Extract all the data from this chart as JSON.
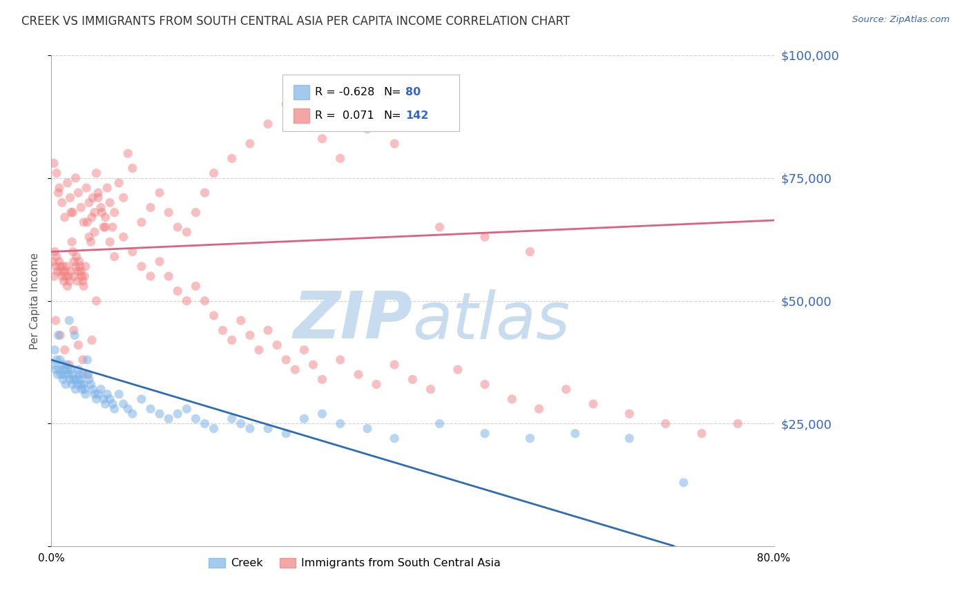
{
  "title": "CREEK VS IMMIGRANTS FROM SOUTH CENTRAL ASIA PER CAPITA INCOME CORRELATION CHART",
  "source": "Source: ZipAtlas.com",
  "ylabel": "Per Capita Income",
  "xlim": [
    0.0,
    0.8
  ],
  "ylim": [
    0,
    100000
  ],
  "yticks": [
    0,
    25000,
    50000,
    75000,
    100000
  ],
  "ytick_labels": [
    "",
    "$25,000",
    "$50,000",
    "$75,000",
    "$100,000"
  ],
  "creek_R": -0.628,
  "creek_N": 80,
  "immigrant_R": 0.071,
  "immigrant_N": 142,
  "creek_color": "#7EB3E8",
  "immigrant_color": "#F08080",
  "creek_line_color": "#2E6BB5",
  "immigrant_line_color": "#E06080",
  "title_color": "#333333",
  "axis_label_color": "#555555",
  "right_tick_color": "#3366CC",
  "watermark_color": "#C8DCF0",
  "background_color": "#FFFFFF",
  "grid_color": "#CCCCCC",
  "creek_line_intercept": 38000,
  "creek_line_slope": -55000,
  "immigrant_line_intercept": 60000,
  "immigrant_line_slope": 8000,
  "creek_scatter_x": [
    0.002,
    0.004,
    0.005,
    0.006,
    0.007,
    0.008,
    0.009,
    0.01,
    0.011,
    0.012,
    0.013,
    0.014,
    0.015,
    0.016,
    0.017,
    0.018,
    0.019,
    0.02,
    0.021,
    0.022,
    0.023,
    0.024,
    0.025,
    0.026,
    0.027,
    0.028,
    0.029,
    0.03,
    0.031,
    0.032,
    0.033,
    0.034,
    0.035,
    0.036,
    0.037,
    0.038,
    0.04,
    0.041,
    0.042,
    0.044,
    0.046,
    0.048,
    0.05,
    0.052,
    0.055,
    0.058,
    0.06,
    0.062,
    0.065,
    0.068,
    0.07,
    0.075,
    0.08,
    0.085,
    0.09,
    0.1,
    0.11,
    0.12,
    0.13,
    0.14,
    0.15,
    0.16,
    0.17,
    0.18,
    0.2,
    0.21,
    0.22,
    0.24,
    0.26,
    0.28,
    0.3,
    0.32,
    0.35,
    0.38,
    0.43,
    0.48,
    0.53,
    0.58,
    0.64,
    0.7
  ],
  "creek_scatter_y": [
    37000,
    40000,
    36000,
    38000,
    35000,
    43000,
    36000,
    38000,
    35000,
    37000,
    34000,
    36000,
    35000,
    33000,
    37000,
    36000,
    35000,
    46000,
    34000,
    36000,
    33000,
    35000,
    34000,
    43000,
    32000,
    34000,
    33000,
    36000,
    35000,
    34000,
    33000,
    32000,
    35000,
    33000,
    32000,
    31000,
    38000,
    35000,
    34000,
    33000,
    32000,
    31000,
    30000,
    31000,
    32000,
    30000,
    29000,
    31000,
    30000,
    29000,
    28000,
    31000,
    29000,
    28000,
    27000,
    30000,
    28000,
    27000,
    26000,
    27000,
    28000,
    26000,
    25000,
    24000,
    26000,
    25000,
    24000,
    24000,
    23000,
    26000,
    27000,
    25000,
    24000,
    22000,
    25000,
    23000,
    22000,
    23000,
    22000,
    13000
  ],
  "immigrant_scatter_x": [
    0.002,
    0.003,
    0.004,
    0.005,
    0.006,
    0.007,
    0.008,
    0.009,
    0.01,
    0.011,
    0.012,
    0.013,
    0.014,
    0.015,
    0.016,
    0.017,
    0.018,
    0.019,
    0.02,
    0.021,
    0.022,
    0.023,
    0.024,
    0.025,
    0.026,
    0.027,
    0.028,
    0.029,
    0.03,
    0.031,
    0.032,
    0.033,
    0.034,
    0.035,
    0.036,
    0.037,
    0.038,
    0.04,
    0.042,
    0.044,
    0.046,
    0.048,
    0.05,
    0.052,
    0.055,
    0.058,
    0.06,
    0.062,
    0.065,
    0.068,
    0.07,
    0.075,
    0.08,
    0.085,
    0.09,
    0.1,
    0.11,
    0.12,
    0.13,
    0.14,
    0.15,
    0.16,
    0.17,
    0.18,
    0.2,
    0.22,
    0.24,
    0.26,
    0.28,
    0.3,
    0.32,
    0.35,
    0.38,
    0.43,
    0.48,
    0.53,
    0.003,
    0.006,
    0.009,
    0.012,
    0.015,
    0.018,
    0.021,
    0.024,
    0.027,
    0.03,
    0.033,
    0.036,
    0.039,
    0.042,
    0.045,
    0.048,
    0.052,
    0.056,
    0.06,
    0.065,
    0.07,
    0.08,
    0.09,
    0.1,
    0.11,
    0.12,
    0.13,
    0.14,
    0.15,
    0.16,
    0.17,
    0.18,
    0.19,
    0.2,
    0.21,
    0.22,
    0.23,
    0.24,
    0.25,
    0.26,
    0.27,
    0.28,
    0.29,
    0.3,
    0.32,
    0.34,
    0.36,
    0.38,
    0.4,
    0.42,
    0.45,
    0.48,
    0.51,
    0.54,
    0.57,
    0.6,
    0.64,
    0.68,
    0.72,
    0.76,
    0.005,
    0.01,
    0.015,
    0.02,
    0.025,
    0.03,
    0.035,
    0.04,
    0.045,
    0.05
  ],
  "immigrant_scatter_y": [
    58000,
    55000,
    60000,
    57000,
    59000,
    56000,
    72000,
    58000,
    57000,
    56000,
    55000,
    57000,
    54000,
    56000,
    55000,
    57000,
    53000,
    55000,
    54000,
    56000,
    68000,
    62000,
    60000,
    58000,
    55000,
    57000,
    59000,
    54000,
    56000,
    58000,
    57000,
    56000,
    55000,
    54000,
    53000,
    55000,
    57000,
    66000,
    63000,
    62000,
    71000,
    68000,
    76000,
    72000,
    69000,
    65000,
    67000,
    73000,
    70000,
    65000,
    68000,
    74000,
    71000,
    80000,
    77000,
    66000,
    69000,
    72000,
    68000,
    65000,
    64000,
    68000,
    72000,
    76000,
    79000,
    82000,
    86000,
    90000,
    88000,
    83000,
    79000,
    85000,
    82000,
    65000,
    63000,
    60000,
    78000,
    76000,
    73000,
    70000,
    67000,
    74000,
    71000,
    68000,
    75000,
    72000,
    69000,
    66000,
    73000,
    70000,
    67000,
    64000,
    71000,
    68000,
    65000,
    62000,
    59000,
    63000,
    60000,
    57000,
    55000,
    58000,
    55000,
    52000,
    50000,
    53000,
    50000,
    47000,
    44000,
    42000,
    46000,
    43000,
    40000,
    44000,
    41000,
    38000,
    36000,
    40000,
    37000,
    34000,
    38000,
    35000,
    33000,
    37000,
    34000,
    32000,
    36000,
    33000,
    30000,
    28000,
    32000,
    29000,
    27000,
    25000,
    23000,
    25000,
    46000,
    43000,
    40000,
    37000,
    44000,
    41000,
    38000,
    35000,
    42000,
    50000
  ]
}
